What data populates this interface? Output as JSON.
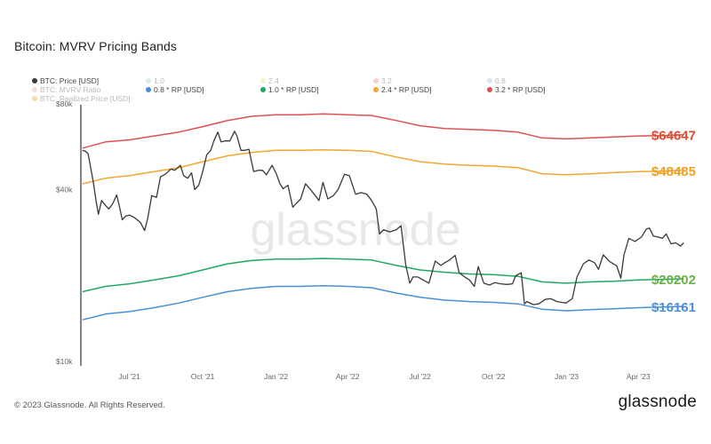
{
  "page": {
    "footer_copyright": "© 2023 Glassnode. All Rights Reserved.",
    "footer_logo": "glassnode",
    "watermark": "glassnode"
  },
  "chart_data": {
    "type": "line",
    "title": "Bitcoin: MVRV Pricing Bands",
    "y_scale": "log",
    "ylim": [
      10000,
      80000
    ],
    "y_ticks": [
      {
        "value": 10000,
        "label": "$10k"
      },
      {
        "value": 40000,
        "label": "$40k"
      },
      {
        "value": 80000,
        "label": "$80k"
      }
    ],
    "xlim": [
      "2021-05-01",
      "2023-05-31"
    ],
    "x_ticks": [
      {
        "date": "2021-07-01",
        "label": "Jul '21"
      },
      {
        "date": "2021-10-01",
        "label": "Oct '21"
      },
      {
        "date": "2022-01-01",
        "label": "Jan '22"
      },
      {
        "date": "2022-04-01",
        "label": "Apr '22"
      },
      {
        "date": "2022-07-01",
        "label": "Jul '22"
      },
      {
        "date": "2022-10-01",
        "label": "Oct '22"
      },
      {
        "date": "2023-01-01",
        "label": "Jan '23"
      },
      {
        "date": "2023-04-01",
        "label": "Apr '23"
      }
    ],
    "grid": false,
    "legend_position": "top-left",
    "legend": [
      {
        "label": "BTC: Price [USD]",
        "color": "#3a3a3a",
        "faded": false
      },
      {
        "label": "1.0",
        "color": "#8fd3c7",
        "faded": true
      },
      {
        "label": "2.4",
        "color": "#e8e27a",
        "faded": true
      },
      {
        "label": "3.2",
        "color": "#f08080",
        "faded": true
      },
      {
        "label": "0.8",
        "color": "#9ab8e6",
        "faded": true
      },
      {
        "label": "BTC: MVRV Ratio",
        "color": "#e8a8a0",
        "faded": true
      },
      {
        "label": "0.8 * RP [USD]",
        "color": "#4a8fd6",
        "faded": false
      },
      {
        "label": "1.0 * RP [USD]",
        "color": "#20a860",
        "faded": false
      },
      {
        "label": "2.4 * RP [USD]",
        "color": "#f0a830",
        "faded": false
      },
      {
        "label": "3.2 * RP [USD]",
        "color": "#e05050",
        "faded": false
      },
      {
        "label": "BTC: Realized Price [USD]",
        "color": "#f0a030",
        "faded": true
      }
    ],
    "end_labels": [
      {
        "text": "$64647",
        "value": 64647,
        "color": "#e04a2a"
      },
      {
        "text": "$48485",
        "value": 48485,
        "color": "#f0a020"
      },
      {
        "text": "$20202",
        "value": 20202,
        "color": "#6ab04a"
      },
      {
        "text": "$16161",
        "value": 16161,
        "color": "#4a90d8"
      }
    ],
    "series": [
      {
        "name": "BTC: Price [USD]",
        "color": "#3a3a3a",
        "points": [
          [
            "2021-05-03",
            57000
          ],
          [
            "2021-05-07",
            56500
          ],
          [
            "2021-05-10",
            55500
          ],
          [
            "2021-05-13",
            50000
          ],
          [
            "2021-05-17",
            43500
          ],
          [
            "2021-05-20",
            38000
          ],
          [
            "2021-05-23",
            34000
          ],
          [
            "2021-05-27",
            38000
          ],
          [
            "2021-06-01",
            36500
          ],
          [
            "2021-06-05",
            35500
          ],
          [
            "2021-06-10",
            37000
          ],
          [
            "2021-06-15",
            39800
          ],
          [
            "2021-06-19",
            35600
          ],
          [
            "2021-06-22",
            32500
          ],
          [
            "2021-06-26",
            33500
          ],
          [
            "2021-07-01",
            33800
          ],
          [
            "2021-07-08",
            33000
          ],
          [
            "2021-07-15",
            31800
          ],
          [
            "2021-07-20",
            29800
          ],
          [
            "2021-07-24",
            33000
          ],
          [
            "2021-07-29",
            39500
          ],
          [
            "2021-08-04",
            39000
          ],
          [
            "2021-08-09",
            46000
          ],
          [
            "2021-08-15",
            47000
          ],
          [
            "2021-08-22",
            49000
          ],
          [
            "2021-08-27",
            48500
          ],
          [
            "2021-09-03",
            50500
          ],
          [
            "2021-09-07",
            46500
          ],
          [
            "2021-09-12",
            45500
          ],
          [
            "2021-09-17",
            47500
          ],
          [
            "2021-09-21",
            41500
          ],
          [
            "2021-09-26",
            43000
          ],
          [
            "2021-10-01",
            48000
          ],
          [
            "2021-10-06",
            55000
          ],
          [
            "2021-10-11",
            57000
          ],
          [
            "2021-10-15",
            61500
          ],
          [
            "2021-10-20",
            66000
          ],
          [
            "2021-10-24",
            61000
          ],
          [
            "2021-10-29",
            61500
          ],
          [
            "2021-11-04",
            61500
          ],
          [
            "2021-11-10",
            66500
          ],
          [
            "2021-11-13",
            64000
          ],
          [
            "2021-11-18",
            57000
          ],
          [
            "2021-11-23",
            57000
          ],
          [
            "2021-11-28",
            57500
          ],
          [
            "2021-12-04",
            48000
          ],
          [
            "2021-12-10",
            48500
          ],
          [
            "2021-12-15",
            48500
          ],
          [
            "2021-12-20",
            46800
          ],
          [
            "2021-12-27",
            50500
          ],
          [
            "2022-01-01",
            47500
          ],
          [
            "2022-01-06",
            43500
          ],
          [
            "2022-01-10",
            41800
          ],
          [
            "2022-01-16",
            43000
          ],
          [
            "2022-01-22",
            36000
          ],
          [
            "2022-01-26",
            37000
          ],
          [
            "2022-02-01",
            38500
          ],
          [
            "2022-02-07",
            43500
          ],
          [
            "2022-02-12",
            42000
          ],
          [
            "2022-02-18",
            40000
          ],
          [
            "2022-02-24",
            38000
          ],
          [
            "2022-03-01",
            44000
          ],
          [
            "2022-03-07",
            38500
          ],
          [
            "2022-03-14",
            39500
          ],
          [
            "2022-03-20",
            41500
          ],
          [
            "2022-03-28",
            47000
          ],
          [
            "2022-04-03",
            46500
          ],
          [
            "2022-04-11",
            40000
          ],
          [
            "2022-04-18",
            40500
          ],
          [
            "2022-04-25",
            40000
          ],
          [
            "2022-05-01",
            38000
          ],
          [
            "2022-05-07",
            35500
          ],
          [
            "2022-05-11",
            29000
          ],
          [
            "2022-05-16",
            30000
          ],
          [
            "2022-05-24",
            29500
          ],
          [
            "2022-06-01",
            30000
          ],
          [
            "2022-06-07",
            31000
          ],
          [
            "2022-06-13",
            22500
          ],
          [
            "2022-06-18",
            19500
          ],
          [
            "2022-06-22",
            20500
          ],
          [
            "2022-06-28",
            20500
          ],
          [
            "2022-07-05",
            20000
          ],
          [
            "2022-07-12",
            19500
          ],
          [
            "2022-07-20",
            23300
          ],
          [
            "2022-07-27",
            22500
          ],
          [
            "2022-08-01",
            23000
          ],
          [
            "2022-08-07",
            23500
          ],
          [
            "2022-08-14",
            24400
          ],
          [
            "2022-08-19",
            21200
          ],
          [
            "2022-08-26",
            20500
          ],
          [
            "2022-09-01",
            20000
          ],
          [
            "2022-09-07",
            19000
          ],
          [
            "2022-09-12",
            22300
          ],
          [
            "2022-09-19",
            19500
          ],
          [
            "2022-09-26",
            19200
          ],
          [
            "2022-10-03",
            19600
          ],
          [
            "2022-10-10",
            19400
          ],
          [
            "2022-10-18",
            19300
          ],
          [
            "2022-10-25",
            19400
          ],
          [
            "2022-10-29",
            20700
          ],
          [
            "2022-11-05",
            21200
          ],
          [
            "2022-11-09",
            16500
          ],
          [
            "2022-11-12",
            16800
          ],
          [
            "2022-11-20",
            16400
          ],
          [
            "2022-11-27",
            16500
          ],
          [
            "2022-12-05",
            17100
          ],
          [
            "2022-12-12",
            17200
          ],
          [
            "2022-12-20",
            16800
          ],
          [
            "2022-12-31",
            16600
          ],
          [
            "2023-01-08",
            17200
          ],
          [
            "2023-01-14",
            20500
          ],
          [
            "2023-01-22",
            22800
          ],
          [
            "2023-01-29",
            23500
          ],
          [
            "2023-02-05",
            23000
          ],
          [
            "2023-02-10",
            21800
          ],
          [
            "2023-02-16",
            24500
          ],
          [
            "2023-02-24",
            23200
          ],
          [
            "2023-03-05",
            22400
          ],
          [
            "2023-03-10",
            20300
          ],
          [
            "2023-03-14",
            24500
          ],
          [
            "2023-03-20",
            28000
          ],
          [
            "2023-03-28",
            27300
          ],
          [
            "2023-04-05",
            28300
          ],
          [
            "2023-04-11",
            30200
          ],
          [
            "2023-04-15",
            30400
          ],
          [
            "2023-04-20",
            28500
          ],
          [
            "2023-04-26",
            28300
          ],
          [
            "2023-05-01",
            28000
          ],
          [
            "2023-05-06",
            29000
          ],
          [
            "2023-05-12",
            26800
          ],
          [
            "2023-05-18",
            27000
          ],
          [
            "2023-05-24",
            26300
          ],
          [
            "2023-05-28",
            27000
          ]
        ]
      },
      {
        "name": "3.2 * RP [USD]",
        "color": "#e05050",
        "points": [
          [
            "2021-05-03",
            58000
          ],
          [
            "2021-06-01",
            61000
          ],
          [
            "2021-07-01",
            62000
          ],
          [
            "2021-08-01",
            64000
          ],
          [
            "2021-09-01",
            66000
          ],
          [
            "2021-10-01",
            69000
          ],
          [
            "2021-11-01",
            72500
          ],
          [
            "2021-12-01",
            75000
          ],
          [
            "2022-01-01",
            76000
          ],
          [
            "2022-02-01",
            76000
          ],
          [
            "2022-03-01",
            76500
          ],
          [
            "2022-04-01",
            76000
          ],
          [
            "2022-05-01",
            75500
          ],
          [
            "2022-06-01",
            72500
          ],
          [
            "2022-07-01",
            69500
          ],
          [
            "2022-08-01",
            68000
          ],
          [
            "2022-09-01",
            67500
          ],
          [
            "2022-10-01",
            67000
          ],
          [
            "2022-11-01",
            66000
          ],
          [
            "2022-12-01",
            63000
          ],
          [
            "2023-01-01",
            62500
          ],
          [
            "2023-02-01",
            63000
          ],
          [
            "2023-03-01",
            63500
          ],
          [
            "2023-04-01",
            64000
          ],
          [
            "2023-05-01",
            64200
          ],
          [
            "2023-05-28",
            64647
          ]
        ]
      },
      {
        "name": "2.4 * RP [USD]",
        "color": "#f0a830",
        "points": [
          [
            "2021-05-03",
            43500
          ],
          [
            "2021-06-01",
            45500
          ],
          [
            "2021-07-01",
            46500
          ],
          [
            "2021-08-01",
            48000
          ],
          [
            "2021-09-01",
            49500
          ],
          [
            "2021-10-01",
            52000
          ],
          [
            "2021-11-01",
            54500
          ],
          [
            "2021-12-01",
            56000
          ],
          [
            "2022-01-01",
            57000
          ],
          [
            "2022-02-01",
            57000
          ],
          [
            "2022-03-01",
            57200
          ],
          [
            "2022-04-01",
            57000
          ],
          [
            "2022-05-01",
            56500
          ],
          [
            "2022-06-01",
            54000
          ],
          [
            "2022-07-01",
            52000
          ],
          [
            "2022-08-01",
            51000
          ],
          [
            "2022-09-01",
            50500
          ],
          [
            "2022-10-01",
            50200
          ],
          [
            "2022-11-01",
            49500
          ],
          [
            "2022-12-01",
            47200
          ],
          [
            "2023-01-01",
            46800
          ],
          [
            "2023-02-01",
            47200
          ],
          [
            "2023-03-01",
            47600
          ],
          [
            "2023-04-01",
            48000
          ],
          [
            "2023-05-01",
            48200
          ],
          [
            "2023-05-28",
            48485
          ]
        ]
      },
      {
        "name": "1.0 * RP [USD]",
        "color": "#20a860",
        "points": [
          [
            "2021-05-03",
            18200
          ],
          [
            "2021-06-01",
            19000
          ],
          [
            "2021-07-01",
            19400
          ],
          [
            "2021-08-01",
            20000
          ],
          [
            "2021-09-01",
            20700
          ],
          [
            "2021-10-01",
            21700
          ],
          [
            "2021-11-01",
            22800
          ],
          [
            "2021-12-01",
            23400
          ],
          [
            "2022-01-01",
            23700
          ],
          [
            "2022-02-01",
            23700
          ],
          [
            "2022-03-01",
            23800
          ],
          [
            "2022-04-01",
            23700
          ],
          [
            "2022-05-01",
            23500
          ],
          [
            "2022-06-01",
            22500
          ],
          [
            "2022-07-01",
            21700
          ],
          [
            "2022-08-01",
            21300
          ],
          [
            "2022-09-01",
            21000
          ],
          [
            "2022-10-01",
            20900
          ],
          [
            "2022-11-01",
            20600
          ],
          [
            "2022-12-01",
            19700
          ],
          [
            "2023-01-01",
            19500
          ],
          [
            "2023-02-01",
            19700
          ],
          [
            "2023-03-01",
            19800
          ],
          [
            "2023-04-01",
            20000
          ],
          [
            "2023-05-01",
            20100
          ],
          [
            "2023-05-28",
            20202
          ]
        ]
      },
      {
        "name": "0.8 * RP [USD]",
        "color": "#4a8fd6",
        "points": [
          [
            "2021-05-03",
            14500
          ],
          [
            "2021-06-01",
            15200
          ],
          [
            "2021-07-01",
            15500
          ],
          [
            "2021-08-01",
            16000
          ],
          [
            "2021-09-01",
            16600
          ],
          [
            "2021-10-01",
            17400
          ],
          [
            "2021-11-01",
            18200
          ],
          [
            "2021-12-01",
            18700
          ],
          [
            "2022-01-01",
            19000
          ],
          [
            "2022-02-01",
            19000
          ],
          [
            "2022-03-01",
            19100
          ],
          [
            "2022-04-01",
            19000
          ],
          [
            "2022-05-01",
            18800
          ],
          [
            "2022-06-01",
            18000
          ],
          [
            "2022-07-01",
            17400
          ],
          [
            "2022-08-01",
            17000
          ],
          [
            "2022-09-01",
            16800
          ],
          [
            "2022-10-01",
            16700
          ],
          [
            "2022-11-01",
            16500
          ],
          [
            "2022-12-01",
            15800
          ],
          [
            "2023-01-01",
            15600
          ],
          [
            "2023-02-01",
            15750
          ],
          [
            "2023-03-01",
            15850
          ],
          [
            "2023-04-01",
            16000
          ],
          [
            "2023-05-01",
            16080
          ],
          [
            "2023-05-28",
            16161
          ]
        ]
      }
    ]
  }
}
